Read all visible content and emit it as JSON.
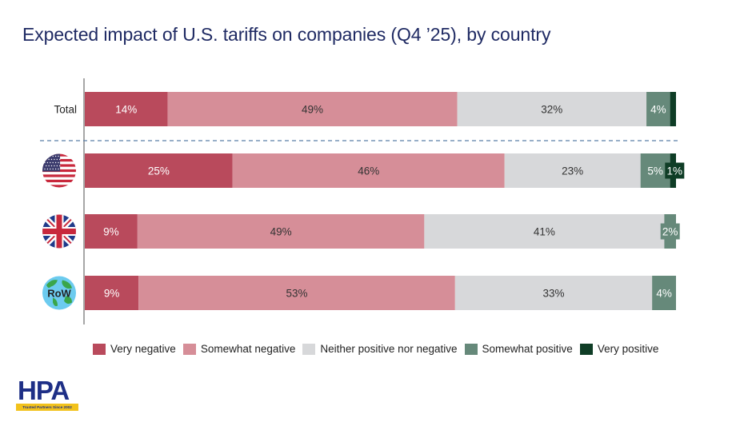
{
  "chart_data": {
    "type": "bar",
    "orientation": "horizontal-stacked-100",
    "title": "Expected impact of U.S. tariffs on companies (Q4 ’25), by country",
    "xlabel": "",
    "ylabel": "",
    "xlim": [
      0,
      100
    ],
    "grid": false,
    "legend_position": "bottom",
    "categories": [
      {
        "label": "Total",
        "icon": "text-label"
      },
      {
        "label": "United States",
        "icon": "us-flag-icon"
      },
      {
        "label": "United Kingdom",
        "icon": "uk-flag-icon"
      },
      {
        "label": "RoW",
        "icon": "globe-row-icon"
      }
    ],
    "series": [
      {
        "name": "Very negative",
        "color": "#b94a5c",
        "label_color": "#ffffff",
        "values": [
          14,
          25,
          9,
          9
        ]
      },
      {
        "name": "Somewhat negative",
        "color": "#d68e98",
        "label_color": "#333333",
        "values": [
          49,
          46,
          49,
          53
        ]
      },
      {
        "name": "Neither positive nor negative",
        "color": "#d7d8da",
        "label_color": "#333333",
        "values": [
          32,
          23,
          41,
          33
        ]
      },
      {
        "name": "Somewhat positive",
        "color": "#66897a",
        "label_color": "#ffffff",
        "values": [
          4,
          5,
          2,
          4
        ]
      },
      {
        "name": "Very positive",
        "color": "#0f3d26",
        "label_color": "#ffffff",
        "values": [
          1,
          1,
          0,
          0
        ]
      }
    ],
    "data_labels": [
      [
        "14%",
        "49%",
        "32%",
        "4%",
        ""
      ],
      [
        "25%",
        "46%",
        "23%",
        "5%",
        "1%"
      ],
      [
        "9%",
        "49%",
        "41%",
        "2%",
        ""
      ],
      [
        "9%",
        "53%",
        "33%",
        "4%",
        ""
      ]
    ],
    "separator_after_category": "Total",
    "row_labels": {
      "total": "Total",
      "row_badge": "RoW"
    }
  },
  "logo": {
    "name": "HPA",
    "tagline": "Trusted Partners Since 2002"
  }
}
